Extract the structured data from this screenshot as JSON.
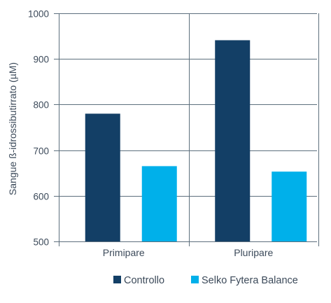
{
  "chart_data": {
    "type": "bar",
    "title": "",
    "xlabel": "",
    "ylabel": "Sangue ß-idrossibutirrato (µM)",
    "categories": [
      "Primipare",
      "Pluripare"
    ],
    "series": [
      {
        "name": "Controllo",
        "color": "#133f66",
        "values": [
          780,
          941
        ]
      },
      {
        "name": "Selko Fytera Balance",
        "color": "#00b0ea",
        "values": [
          665,
          653
        ]
      }
    ],
    "ylim": [
      500,
      1000
    ],
    "yticks": [
      500,
      600,
      700,
      800,
      900,
      1000
    ],
    "grid": true,
    "legend_position": "bottom-right"
  }
}
